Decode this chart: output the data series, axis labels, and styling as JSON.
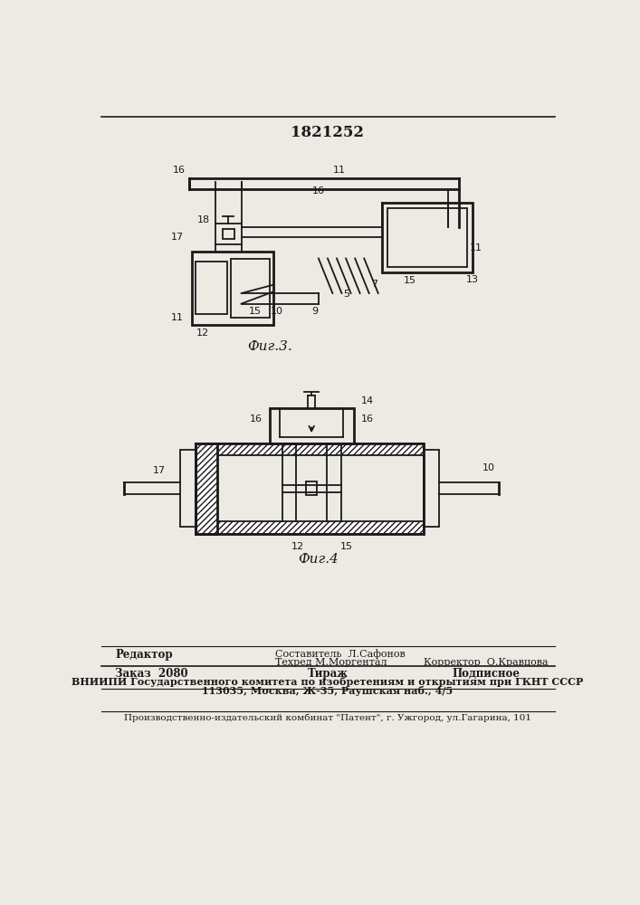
{
  "patent_number": "1821252",
  "background_color": "#ede9e3",
  "fig3_label": "Фиг.3.",
  "fig4_label": "Фиг.4",
  "footer_line1_left": "Редактор",
  "footer_line1_center1": "Составитель  Л.Сафонов",
  "footer_line1_center2": "Техред М.Моргентал",
  "footer_line1_right": "Корректор  О.Кравцова",
  "footer_line2_left": "Заказ  2080",
  "footer_line2_center": "Тираж",
  "footer_line2_right": "Подписное",
  "footer_line3": "ВНИИПИ Государственного комитета по изобретениям и открытиям при ГКНТ СССР",
  "footer_line4": "113035, Москва, Ж-35, Раушская наб., 4/5",
  "footer_line5": "Производственно-издательский комбинат \"Патент\", г. Ужгород, ул.Гагарина, 101",
  "text_color": "#1a1a1a",
  "line_color": "#1a1a1a"
}
